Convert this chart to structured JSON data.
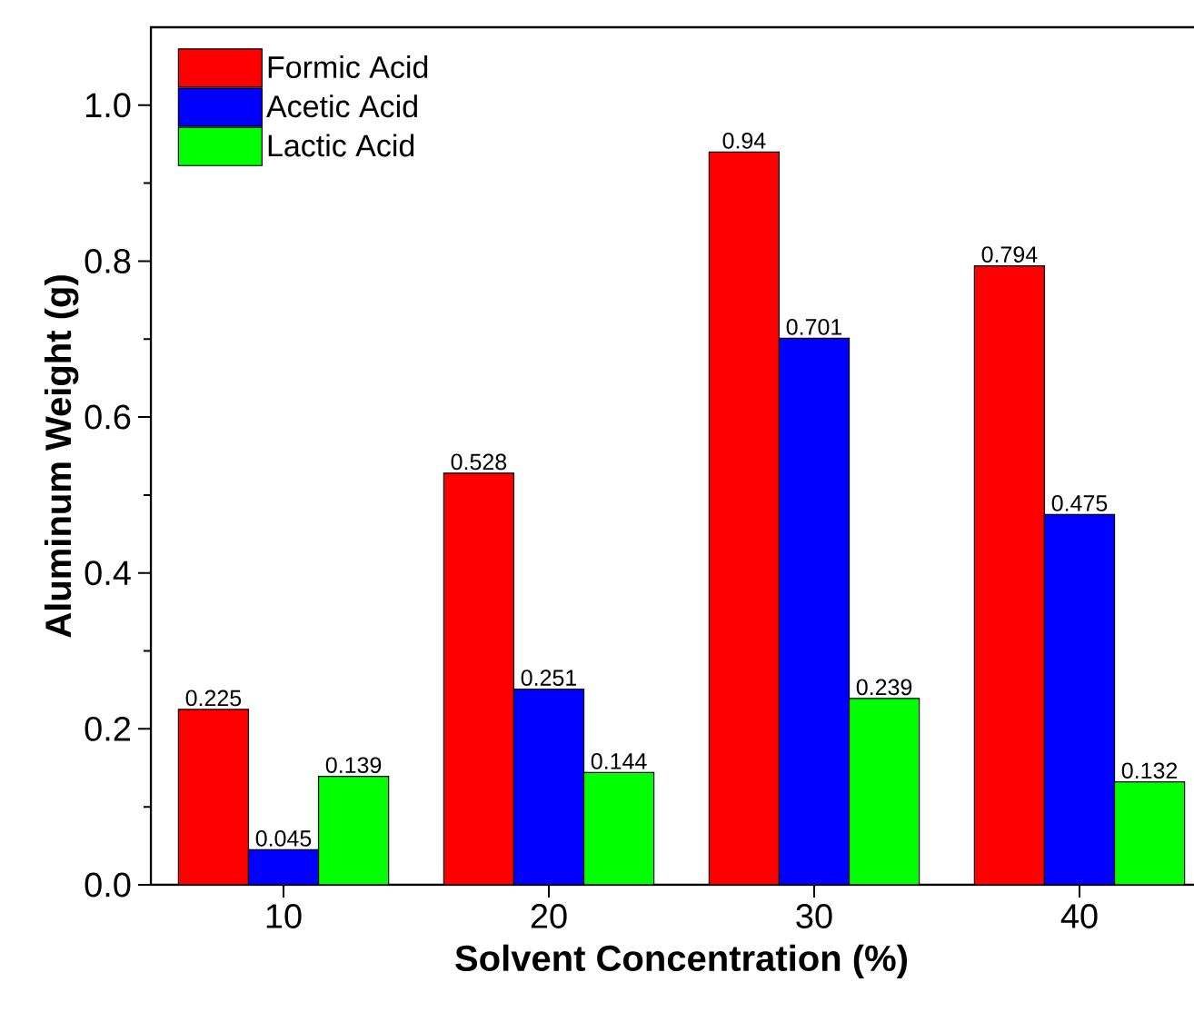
{
  "chart_data": {
    "type": "bar",
    "xlabel": "Solvent Concentration (%)",
    "ylabel": "Aluminum Weight (g)",
    "categories": [
      "10",
      "20",
      "30",
      "40"
    ],
    "series": [
      {
        "name": "Formic Acid",
        "color": "#ff0000",
        "values": [
          0.225,
          0.528,
          0.94,
          0.794
        ]
      },
      {
        "name": "Acetic Acid",
        "color": "#0000ff",
        "values": [
          0.045,
          0.251,
          0.701,
          0.475
        ]
      },
      {
        "name": "Lactic Acid",
        "color": "#00ff00",
        "values": [
          0.139,
          0.144,
          0.239,
          0.132
        ]
      }
    ],
    "ylim": [
      0,
      1.1
    ],
    "yticks": [
      {
        "value": 0,
        "label": "0.0"
      },
      {
        "value": 0.2,
        "label": "0.2"
      },
      {
        "value": 0.4,
        "label": "0.4"
      },
      {
        "value": 0.6,
        "label": "0.6"
      },
      {
        "value": 0.8,
        "label": "0.8"
      },
      {
        "value": 1.0,
        "label": "1.0"
      }
    ],
    "data_labels": true,
    "legend": "top left",
    "grid": false
  }
}
